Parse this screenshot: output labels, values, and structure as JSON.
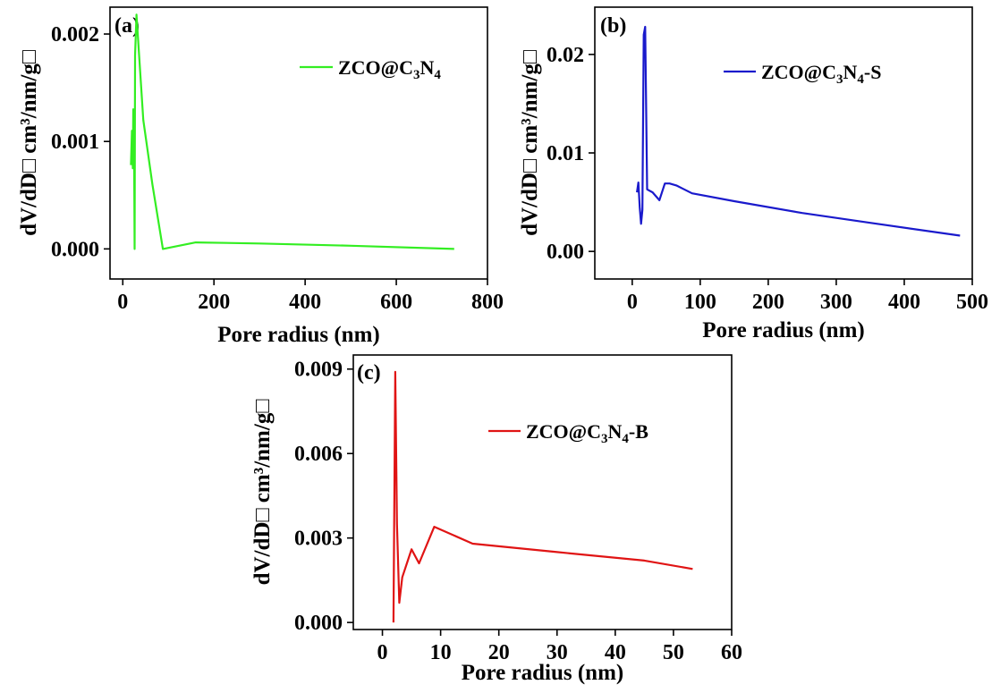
{
  "chart_data": [
    {
      "type": "line",
      "panel_label": "(a)",
      "xlabel": "Pore radius (nm)",
      "ylabel": "dV/dD□ cm³/nm/g□",
      "xlim": [
        -28,
        800
      ],
      "ylim": [
        -0.00028,
        0.00225
      ],
      "xticks": [
        0,
        200,
        400,
        600,
        800
      ],
      "xtick_labels": [
        "0",
        "200",
        "400",
        "600",
        "800"
      ],
      "yticks": [
        0,
        0.001,
        0.002
      ],
      "ytick_labels": [
        "0.000",
        "0.001",
        "0.002"
      ],
      "legend_position": "top-right",
      "series": [
        {
          "name": "ZCO@C3N4",
          "legend_parts": {
            "p1": "ZCO@C",
            "s1": "3",
            "p2": "N",
            "s2": "4",
            "p3": ""
          },
          "color": "#33ee22",
          "x": [
            18,
            20,
            22,
            23,
            24,
            25,
            26,
            27,
            30,
            45,
            65,
            88,
            160,
            300,
            500,
            727
          ],
          "y": [
            0.00078,
            0.0011,
            0.00075,
            0.0013,
            0.00077,
            0.00078,
            0.0,
            0.0018,
            0.00218,
            0.0012,
            0.0006,
            0.0,
            6e-05,
            5e-05,
            3e-05,
            0.0
          ]
        }
      ]
    },
    {
      "type": "line",
      "panel_label": "(b)",
      "xlabel": "Pore radius (nm)",
      "ylabel": "dV/dD□ cm³/nm/g□",
      "xlim": [
        -55,
        500
      ],
      "ylim": [
        -0.0028,
        0.0248
      ],
      "xticks": [
        0,
        100,
        200,
        300,
        400,
        500
      ],
      "xtick_labels": [
        "0",
        "100",
        "200",
        "300",
        "400",
        "500"
      ],
      "yticks": [
        0,
        0.01,
        0.02
      ],
      "ytick_labels": [
        "0.00",
        "0.01",
        "0.02"
      ],
      "legend_position": "top-right",
      "series": [
        {
          "name": "ZCO@C3N4-S",
          "legend_parts": {
            "p1": "ZCO@C",
            "s1": "3",
            "p2": "N",
            "s2": "4",
            "p3": "-S"
          },
          "color": "#1a1acc",
          "x": [
            7,
            9,
            11,
            13,
            15,
            17,
            19,
            22,
            30,
            40,
            48,
            55,
            65,
            88,
            150,
            250,
            350,
            482
          ],
          "y": [
            0.006,
            0.007,
            0.0045,
            0.0028,
            0.0042,
            0.022,
            0.0228,
            0.0063,
            0.006,
            0.0052,
            0.0069,
            0.0069,
            0.0067,
            0.0059,
            0.0051,
            0.0039,
            0.0029,
            0.0016
          ]
        }
      ]
    },
    {
      "type": "line",
      "panel_label": "(c)",
      "xlabel": "Pore radius (nm)",
      "ylabel": "dV/dD□ cm³/nm/g□",
      "xlim": [
        -5,
        60
      ],
      "ylim": [
        -0.00025,
        0.0095
      ],
      "xticks": [
        0,
        10,
        20,
        30,
        40,
        50,
        60
      ],
      "xtick_labels": [
        "0",
        "10",
        "20",
        "30",
        "40",
        "50",
        "60"
      ],
      "yticks": [
        0,
        0.003,
        0.006,
        0.009
      ],
      "ytick_labels": [
        "0.000",
        "0.003",
        "0.006",
        "0.009"
      ],
      "legend_position": "top-right",
      "series": [
        {
          "name": "ZCO@C3N4-B",
          "legend_parts": {
            "p1": "ZCO@C",
            "s1": "3",
            "p2": "N",
            "s2": "4",
            "p3": "-B"
          },
          "color": "#e01414",
          "x": [
            1.9,
            2.2,
            2.5,
            2.9,
            3.4,
            4.2,
            5.0,
            6.3,
            8.9,
            15.5,
            30,
            45,
            53.3
          ],
          "y": [
            0.0,
            0.0089,
            0.0035,
            0.0007,
            0.0016,
            0.0021,
            0.0026,
            0.0021,
            0.0034,
            0.0028,
            0.0025,
            0.0022,
            0.0019
          ]
        }
      ]
    }
  ]
}
